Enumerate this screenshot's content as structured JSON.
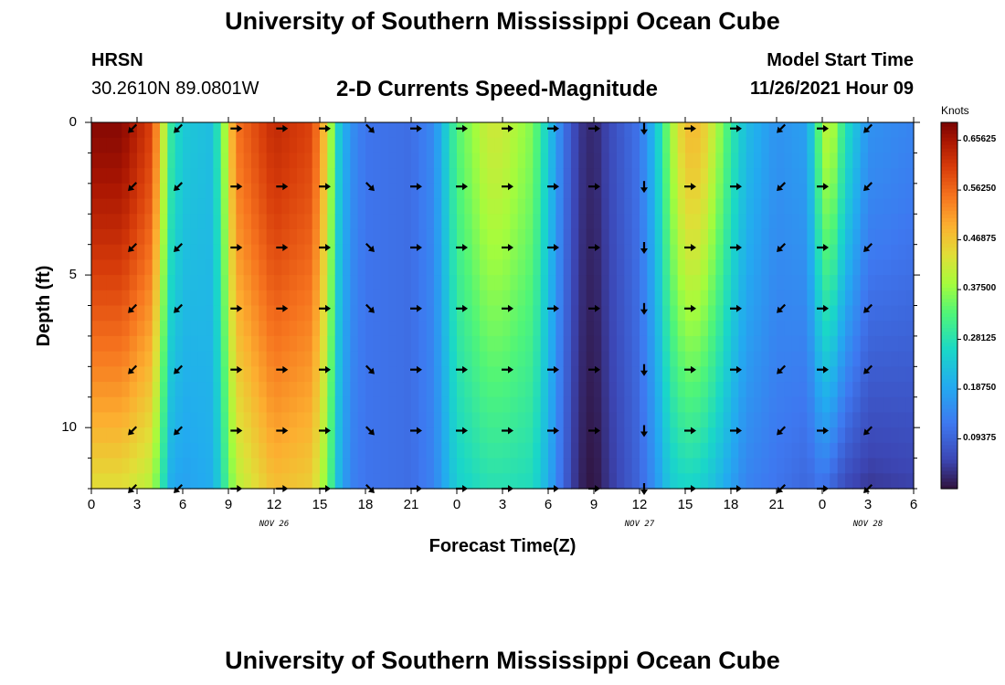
{
  "header": {
    "title": "University of Southern Mississippi Ocean Cube",
    "station_name": "HRSN",
    "station_coords": "30.2610N  89.0801W",
    "plot_title": "2-D Currents Speed-Magnitude",
    "model_start_label": "Model Start Time",
    "model_start_value": "11/26/2021 Hour 09"
  },
  "footer": {
    "title": "University of Southern Mississippi Ocean Cube"
  },
  "chart_data": {
    "type": "heatmap",
    "title": "2-D Currents Speed-Magnitude",
    "xlabel": "Forecast Time(Z)",
    "ylabel": "Depth (ft)",
    "x_range_hours": [
      0,
      54
    ],
    "y_range_ft": [
      0,
      12
    ],
    "x_tick_hours": [
      0,
      3,
      6,
      9,
      12,
      15,
      18,
      21,
      24,
      27,
      30,
      33,
      36,
      39,
      42,
      45,
      48,
      51,
      54
    ],
    "x_tick_labels": [
      "0",
      "3",
      "6",
      "9",
      "12",
      "15",
      "18",
      "21",
      "0",
      "3",
      "6",
      "9",
      "12",
      "15",
      "18",
      "21",
      "0",
      "3",
      "6"
    ],
    "y_tick_values": [
      0,
      5,
      10
    ],
    "y_tick_labels": [
      "0",
      "5",
      "10"
    ],
    "date_labels": [
      {
        "hour": 12,
        "text": "NOV 26"
      },
      {
        "hour": 36,
        "text": "NOV 27"
      },
      {
        "hour": 51,
        "text": "NOV 28"
      }
    ],
    "colorbar": {
      "label": "Knots",
      "min": 0.0,
      "max": 0.69,
      "ticks": [
        0.65625,
        0.5625,
        0.46875,
        0.375,
        0.28125,
        0.1875,
        0.09375
      ],
      "tick_labels": [
        "0.65625",
        "0.56250",
        "0.46875",
        "0.37500",
        "0.28125",
        "0.18750",
        "0.09375"
      ]
    },
    "speed_profile_surface": {
      "hours": [
        0,
        2,
        4,
        4.6,
        5.2,
        6,
        8,
        9.5,
        12,
        14.5,
        15.5,
        16.2,
        17,
        18,
        21,
        22.5,
        24,
        26,
        27,
        29,
        30,
        31,
        32,
        33,
        34,
        36,
        37,
        38,
        39,
        40,
        41,
        42,
        43,
        45,
        47,
        48,
        48.5,
        49.5,
        51,
        54
      ],
      "values": [
        0.68,
        0.68,
        0.6,
        0.45,
        0.3,
        0.24,
        0.22,
        0.55,
        0.63,
        0.6,
        0.45,
        0.25,
        0.16,
        0.12,
        0.11,
        0.15,
        0.33,
        0.42,
        0.42,
        0.36,
        0.24,
        0.12,
        0.04,
        0.02,
        0.06,
        0.12,
        0.22,
        0.38,
        0.48,
        0.48,
        0.4,
        0.3,
        0.22,
        0.16,
        0.18,
        0.38,
        0.42,
        0.28,
        0.16,
        0.14
      ]
    },
    "speed_profile_bottom": {
      "hours": [
        0,
        2,
        4,
        4.6,
        5.2,
        6,
        8,
        9.5,
        12,
        14.5,
        15.5,
        16.2,
        17,
        18,
        21,
        22.5,
        24,
        26,
        27,
        29,
        30,
        31,
        32,
        33,
        34,
        36,
        37,
        38,
        39,
        40,
        41,
        42,
        43,
        45,
        47,
        48,
        48.5,
        49.5,
        51,
        54
      ],
      "values": [
        0.44,
        0.44,
        0.4,
        0.3,
        0.2,
        0.18,
        0.2,
        0.4,
        0.48,
        0.46,
        0.36,
        0.22,
        0.14,
        0.12,
        0.11,
        0.14,
        0.25,
        0.28,
        0.28,
        0.27,
        0.2,
        0.1,
        0.02,
        0.0,
        0.04,
        0.1,
        0.16,
        0.24,
        0.26,
        0.25,
        0.22,
        0.18,
        0.14,
        0.12,
        0.1,
        0.12,
        0.1,
        0.06,
        0.04,
        0.05
      ]
    },
    "arrow_hours": [
      2.7,
      5.7,
      9.5,
      12.5,
      15.3,
      18.3,
      21.3,
      24.3,
      27.3,
      30.3,
      33,
      36.3,
      39.3,
      42.3,
      45.3,
      48,
      51
    ],
    "arrow_depths_ft": [
      0.2,
      2.1,
      4.1,
      6.1,
      8.1,
      10.1,
      12
    ],
    "arrow_directions_deg": [
      225,
      225,
      0,
      0,
      0,
      315,
      0,
      0,
      0,
      0,
      0,
      270,
      0,
      0,
      225,
      0,
      225
    ]
  }
}
